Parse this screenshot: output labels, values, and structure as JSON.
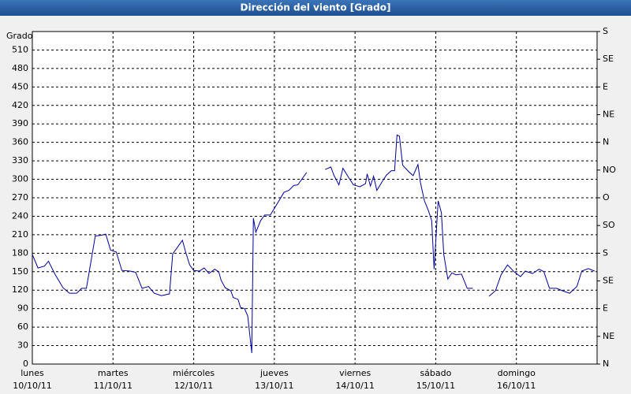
{
  "chart_data": {
    "type": "line",
    "title": "Dirección del viento [Grado]",
    "y_label": "Grado",
    "color": "#000099",
    "grid": true,
    "xlim": [
      0,
      7
    ],
    "xticks": [
      {
        "value": 0,
        "label": "lunes",
        "sublabel": "10/10/11"
      },
      {
        "value": 1,
        "label": "martes",
        "sublabel": "11/10/11"
      },
      {
        "value": 2,
        "label": "miércoles",
        "sublabel": "12/10/11"
      },
      {
        "value": 3,
        "label": "jueves",
        "sublabel": "13/10/11"
      },
      {
        "value": 4,
        "label": "viernes",
        "sublabel": "14/10/11"
      },
      {
        "value": 5,
        "label": "sábado",
        "sublabel": "15/10/11"
      },
      {
        "value": 6,
        "label": "domingo",
        "sublabel": "16/10/11"
      }
    ],
    "ylim": [
      0,
      540
    ],
    "yticks": [
      0,
      30,
      60,
      90,
      120,
      150,
      180,
      210,
      240,
      270,
      300,
      330,
      360,
      390,
      420,
      450,
      480,
      510
    ],
    "y2lim": [
      0,
      540
    ],
    "y2ticks": [
      {
        "value": 0,
        "label": "N"
      },
      {
        "value": 45,
        "label": "NE"
      },
      {
        "value": 90,
        "label": "E"
      },
      {
        "value": 135,
        "label": "SE"
      },
      {
        "value": 180,
        "label": "S"
      },
      {
        "value": 225,
        "label": "SO"
      },
      {
        "value": 270,
        "label": "O"
      },
      {
        "value": 315,
        "label": "NO"
      },
      {
        "value": 360,
        "label": "N"
      },
      {
        "value": 405,
        "label": "NE"
      },
      {
        "value": 450,
        "label": "E"
      },
      {
        "value": 495,
        "label": "SE"
      },
      {
        "value": 540,
        "label": "S"
      }
    ],
    "x": [
      0,
      0.07,
      0.15,
      0.2,
      0.28,
      0.38,
      0.46,
      0.55,
      0.61,
      0.67,
      0.73,
      0.78,
      0.85,
      0.91,
      0.97,
      1.04,
      1.11,
      1.21,
      1.28,
      1.36,
      1.44,
      1.51,
      1.6,
      1.7,
      1.74,
      1.79,
      1.86,
      1.9,
      1.95,
      2.0,
      2.07,
      2.13,
      2.19,
      2.26,
      2.31,
      2.34,
      2.39,
      2.46,
      2.49,
      2.55,
      2.58,
      2.63,
      2.67,
      2.72,
      2.74,
      2.77,
      2.83,
      2.88,
      2.95,
      3.01,
      3.07,
      3.12,
      3.18,
      3.24,
      3.29,
      3.35,
      3.4,
      3.5,
      3.63,
      3.7,
      3.74,
      3.8,
      3.85,
      3.92,
      3.98,
      4.06,
      4.13,
      4.15,
      4.19,
      4.23,
      4.27,
      4.33,
      4.39,
      4.45,
      4.49,
      4.52,
      4.55,
      4.59,
      4.66,
      4.72,
      4.78,
      4.81,
      4.86,
      4.91,
      4.95,
      4.98,
      5.03,
      5.07,
      5.1,
      5.15,
      5.2,
      5.25,
      5.32,
      5.39,
      5.46,
      5.56,
      5.66,
      5.74,
      5.81,
      5.89,
      5.97,
      6.05,
      6.11,
      6.2,
      6.28,
      6.34,
      6.41,
      6.5,
      6.57,
      6.66,
      6.75,
      6.81,
      6.89,
      6.97
    ],
    "values": [
      178,
      156,
      159,
      167,
      146,
      124,
      115,
      115,
      123,
      123,
      169,
      208,
      209,
      211,
      185,
      182,
      152,
      151,
      149,
      123,
      126,
      115,
      111,
      114,
      179,
      188,
      201,
      182,
      161,
      152,
      151,
      156,
      147,
      154,
      150,
      136,
      124,
      119,
      108,
      105,
      92,
      90,
      78,
      18,
      237,
      214,
      233,
      242,
      242,
      255,
      268,
      279,
      282,
      290,
      291,
      302,
      311,
      null,
      316,
      320,
      306,
      291,
      318,
      303,
      291,
      288,
      293,
      309,
      289,
      305,
      282,
      295,
      307,
      314,
      314,
      372,
      370,
      323,
      313,
      306,
      324,
      295,
      265,
      249,
      233,
      154,
      265,
      246,
      178,
      138,
      148,
      145,
      146,
      123,
      123,
      null,
      110,
      119,
      145,
      161,
      150,
      142,
      151,
      147,
      154,
      150,
      123,
      123,
      119,
      115,
      126,
      151,
      155,
      151
    ]
  }
}
